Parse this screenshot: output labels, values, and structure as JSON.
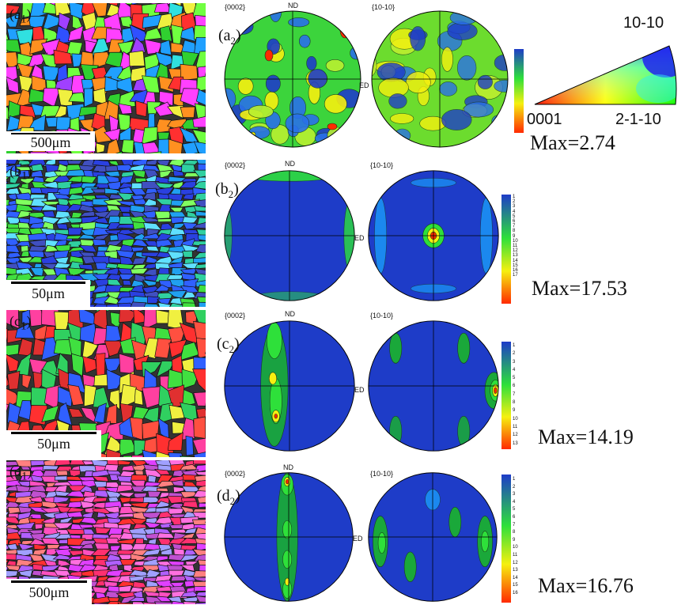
{
  "rows": [
    {
      "id": "a",
      "ebsd_label": "(a",
      "ebsd_sub": "1",
      "scalebar": "500μm",
      "pf_left_label": "{0002}",
      "pf_right_label": "{10-10}",
      "nd_label": "ND",
      "ed_label": "ED",
      "panel_tag": "(a",
      "panel_sub": "2",
      "max": "Max=2.74"
    },
    {
      "id": "b",
      "ebsd_label": "(b",
      "ebsd_sub": "1",
      "scalebar": "50μm",
      "pf_left_label": "{0002}",
      "pf_right_label": "{10-10}",
      "nd_label": "ND",
      "ed_label": "ED",
      "panel_tag": "(b",
      "panel_sub": "2",
      "max": "Max=17.53",
      "ticks": [
        "1",
        "2",
        "3",
        "4",
        "5",
        "6",
        "7",
        "8",
        "9",
        "10",
        "11",
        "12",
        "13",
        "14",
        "15",
        "16",
        "17"
      ]
    },
    {
      "id": "c",
      "ebsd_label": "(c",
      "ebsd_sub": "1",
      "scalebar": "50μm",
      "pf_left_label": "{0002}",
      "pf_right_label": "{10-10}",
      "nd_label": "ND",
      "ed_label": "ED",
      "panel_tag": "(c",
      "panel_sub": "2",
      "max": "Max=14.19",
      "ticks": [
        "1",
        "2",
        "3",
        "4",
        "5",
        "6",
        "7",
        "8",
        "9",
        "10",
        "11",
        "12",
        "13"
      ]
    },
    {
      "id": "d",
      "ebsd_label": "(d",
      "ebsd_sub": "1",
      "scalebar": "500μm",
      "pf_left_label": "{0002}",
      "pf_right_label": "{10-10}",
      "nd_label": "ND",
      "ed_label": "ED",
      "panel_tag": "(d",
      "panel_sub": "2",
      "max": "Max=16.76",
      "ticks": [
        "1",
        "2",
        "3",
        "4",
        "5",
        "6",
        "7",
        "8",
        "9",
        "10",
        "11",
        "12",
        "13",
        "14",
        "15",
        "16"
      ]
    }
  ],
  "ipf_triangle": {
    "top_label": "10-10",
    "left_label": "0001",
    "right_label": "2-1-10"
  },
  "colors": {
    "low": "#1e3cc8",
    "mid": "#2ee03a",
    "high": "#ff2a00",
    "yellow": "#f5f010"
  }
}
